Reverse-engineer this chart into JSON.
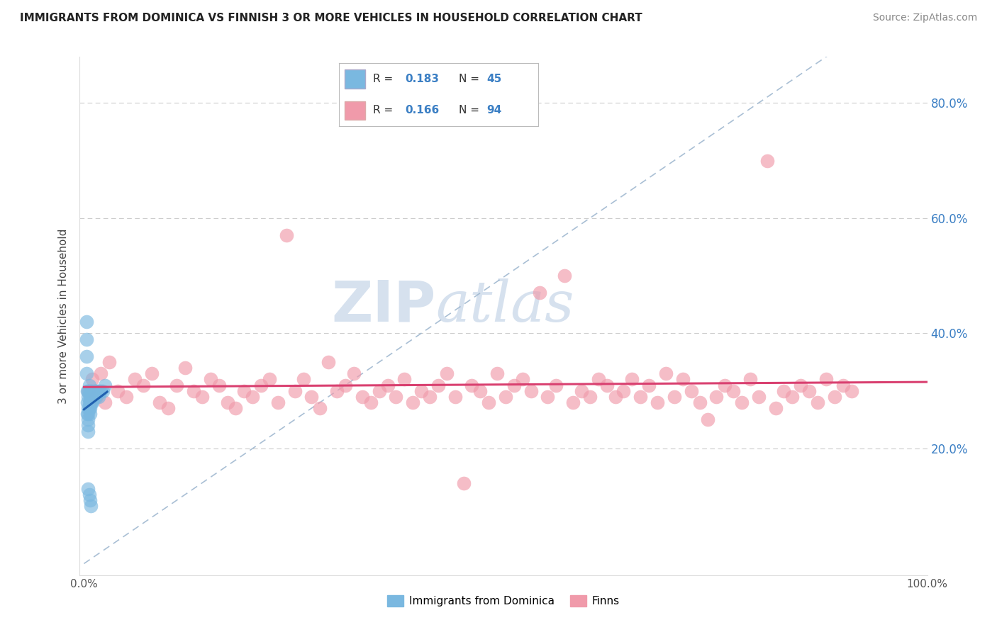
{
  "title": "IMMIGRANTS FROM DOMINICA VS FINNISH 3 OR MORE VEHICLES IN HOUSEHOLD CORRELATION CHART",
  "source": "Source: ZipAtlas.com",
  "ylabel": "3 or more Vehicles in Household",
  "x_tick_labels": [
    "0.0%",
    "",
    "",
    "",
    "",
    "100.0%"
  ],
  "x_tick_positions": [
    0.0,
    0.2,
    0.4,
    0.6,
    0.8,
    1.0
  ],
  "y_tick_labels_right": [
    "20.0%",
    "40.0%",
    "60.0%",
    "80.0%"
  ],
  "y_ticks_right": [
    0.2,
    0.4,
    0.6,
    0.8
  ],
  "legend_r1": "R = 0.183",
  "legend_n1": "N = 45",
  "legend_r2": "R = 0.166",
  "legend_n2": "N = 94",
  "color_blue": "#7ab8e0",
  "color_pink": "#f09aaa",
  "color_blue_line": "#2060b0",
  "color_pink_line": "#d94070",
  "color_ref_line": "#a0b8d0",
  "watermark_zip": "ZIP",
  "watermark_atlas": "atlas",
  "blue_x": [
    0.003,
    0.003,
    0.003,
    0.003,
    0.004,
    0.004,
    0.004,
    0.005,
    0.005,
    0.005,
    0.005,
    0.005,
    0.005,
    0.005,
    0.006,
    0.006,
    0.006,
    0.006,
    0.007,
    0.007,
    0.007,
    0.007,
    0.008,
    0.008,
    0.008,
    0.009,
    0.009,
    0.01,
    0.01,
    0.011,
    0.012,
    0.012,
    0.013,
    0.014,
    0.015,
    0.016,
    0.017,
    0.018,
    0.02,
    0.022,
    0.025,
    0.005,
    0.006,
    0.007,
    0.008
  ],
  "blue_y": [
    0.42,
    0.39,
    0.36,
    0.33,
    0.3,
    0.28,
    0.26,
    0.3,
    0.29,
    0.27,
    0.26,
    0.25,
    0.24,
    0.23,
    0.31,
    0.3,
    0.28,
    0.27,
    0.29,
    0.28,
    0.27,
    0.26,
    0.3,
    0.29,
    0.28,
    0.3,
    0.28,
    0.29,
    0.28,
    0.29,
    0.3,
    0.29,
    0.3,
    0.29,
    0.3,
    0.3,
    0.29,
    0.3,
    0.3,
    0.3,
    0.31,
    0.13,
    0.12,
    0.11,
    0.1
  ],
  "pink_x": [
    0.005,
    0.01,
    0.015,
    0.02,
    0.025,
    0.03,
    0.04,
    0.05,
    0.06,
    0.07,
    0.08,
    0.09,
    0.1,
    0.11,
    0.12,
    0.13,
    0.14,
    0.15,
    0.16,
    0.17,
    0.18,
    0.19,
    0.2,
    0.21,
    0.22,
    0.23,
    0.24,
    0.25,
    0.26,
    0.27,
    0.28,
    0.29,
    0.3,
    0.31,
    0.32,
    0.33,
    0.34,
    0.35,
    0.36,
    0.37,
    0.38,
    0.39,
    0.4,
    0.41,
    0.42,
    0.43,
    0.44,
    0.45,
    0.46,
    0.47,
    0.48,
    0.49,
    0.5,
    0.51,
    0.52,
    0.53,
    0.54,
    0.55,
    0.56,
    0.57,
    0.58,
    0.59,
    0.6,
    0.61,
    0.62,
    0.63,
    0.64,
    0.65,
    0.66,
    0.67,
    0.68,
    0.69,
    0.7,
    0.71,
    0.72,
    0.73,
    0.74,
    0.75,
    0.76,
    0.77,
    0.78,
    0.79,
    0.8,
    0.81,
    0.82,
    0.83,
    0.84,
    0.85,
    0.86,
    0.87,
    0.88,
    0.89,
    0.9,
    0.91
  ],
  "pink_y": [
    0.3,
    0.32,
    0.29,
    0.33,
    0.28,
    0.35,
    0.3,
    0.29,
    0.32,
    0.31,
    0.33,
    0.28,
    0.27,
    0.31,
    0.34,
    0.3,
    0.29,
    0.32,
    0.31,
    0.28,
    0.27,
    0.3,
    0.29,
    0.31,
    0.32,
    0.28,
    0.57,
    0.3,
    0.32,
    0.29,
    0.27,
    0.35,
    0.3,
    0.31,
    0.33,
    0.29,
    0.28,
    0.3,
    0.31,
    0.29,
    0.32,
    0.28,
    0.3,
    0.29,
    0.31,
    0.33,
    0.29,
    0.14,
    0.31,
    0.3,
    0.28,
    0.33,
    0.29,
    0.31,
    0.32,
    0.3,
    0.47,
    0.29,
    0.31,
    0.5,
    0.28,
    0.3,
    0.29,
    0.32,
    0.31,
    0.29,
    0.3,
    0.32,
    0.29,
    0.31,
    0.28,
    0.33,
    0.29,
    0.32,
    0.3,
    0.28,
    0.25,
    0.29,
    0.31,
    0.3,
    0.28,
    0.32,
    0.29,
    0.7,
    0.27,
    0.3,
    0.29,
    0.31,
    0.3,
    0.28,
    0.32,
    0.29,
    0.31,
    0.3
  ]
}
